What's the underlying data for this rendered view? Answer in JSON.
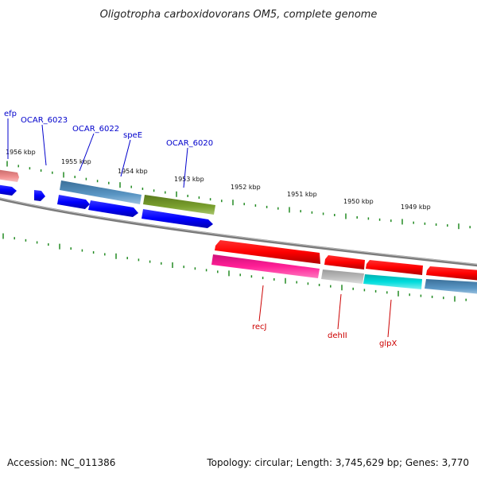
{
  "title": "Oligotropha carboxidovorans OM5, complete genome",
  "footer": {
    "accession": "Accession: NC_011386",
    "summary": "Topology: circular; Length: 3,745,629 bp; Genes: 3,770"
  },
  "scale_labels": [
    "1956 kbp",
    "1955 kbp",
    "1954 kbp",
    "1953 kbp",
    "1952 kbp",
    "1951 kbp",
    "1950 kbp",
    "1949 kbp"
  ],
  "top_gene_labels": [
    "efp",
    "OCAR_6023",
    "OCAR_6022",
    "speE",
    "OCAR_6020"
  ],
  "bottom_gene_labels": [
    "recJ",
    "dehII",
    "glpX"
  ],
  "colors": {
    "backbone": "#808080",
    "tick_green": "#228b22",
    "blue": "#0000ff",
    "steel_blue": "#4682b4",
    "olive": "#6b8e23",
    "salmon": "#e9898a",
    "red": "#ff0000",
    "magenta": "#ff1493",
    "gray": "#b0b0b0",
    "cyan": "#00d0d0"
  }
}
